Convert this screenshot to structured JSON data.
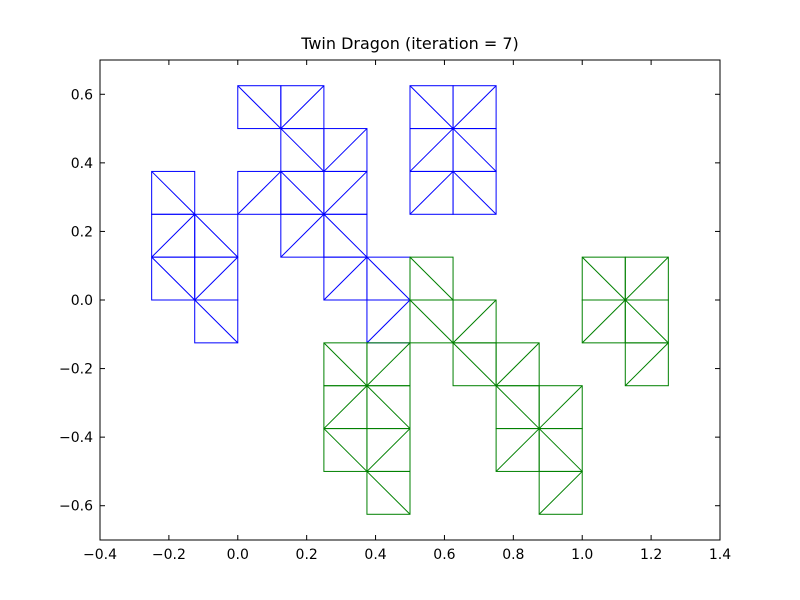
{
  "chart_data": {
    "type": "line",
    "title": "Twin Dragon   (iteration = 7)",
    "xlabel": "",
    "ylabel": "",
    "xlim": [
      -0.4,
      1.4
    ],
    "ylim": [
      -0.7,
      0.7
    ],
    "x_ticks": [
      -0.4,
      -0.2,
      0.0,
      0.2,
      0.4,
      0.6,
      0.8,
      1.0,
      1.2,
      1.4
    ],
    "x_tick_labels": [
      "−0.4",
      "−0.2",
      "0.0",
      "0.2",
      "0.4",
      "0.6",
      "0.8",
      "1.0",
      "1.2",
      "1.4"
    ],
    "y_ticks": [
      -0.6,
      -0.4,
      -0.2,
      0.0,
      0.2,
      0.4,
      0.6
    ],
    "y_tick_labels": [
      "−0.6",
      "−0.4",
      "−0.2",
      "0.0",
      "0.2",
      "0.4",
      "0.6"
    ],
    "grid": false,
    "cell_size": 0.125,
    "series": [
      {
        "color": "#0000ff",
        "cells": [
          [
            0,
            0.5,
            [
              "d"
            ]
          ],
          [
            0.125,
            0.5,
            [
              "a"
            ]
          ],
          [
            0.125,
            0.375,
            [
              "d"
            ]
          ],
          [
            0.25,
            0.375,
            [
              "a"
            ]
          ],
          [
            0.5,
            0.5,
            [
              "d"
            ]
          ],
          [
            0.625,
            0.5,
            [
              "a"
            ]
          ],
          [
            0.5,
            0.375,
            [
              "a"
            ]
          ],
          [
            0.625,
            0.375,
            [
              "d"
            ]
          ],
          [
            -0.25,
            0.25,
            [
              "d"
            ]
          ],
          [
            0,
            0.25,
            [
              "a"
            ]
          ],
          [
            0.125,
            0.25,
            [
              "d"
            ]
          ],
          [
            0.25,
            0.25,
            [
              "a"
            ]
          ],
          [
            0.5,
            0.25,
            [
              "a"
            ]
          ],
          [
            0.625,
            0.25,
            [
              "d"
            ]
          ],
          [
            -0.25,
            0.125,
            [
              "a"
            ]
          ],
          [
            -0.125,
            0.125,
            [
              "d"
            ]
          ],
          [
            0.125,
            0.125,
            [
              "a"
            ]
          ],
          [
            0.25,
            0.125,
            [
              "d"
            ]
          ],
          [
            -0.25,
            0,
            [
              "d"
            ]
          ],
          [
            -0.125,
            0,
            [
              "a"
            ]
          ],
          [
            0.25,
            0,
            [
              "a"
            ]
          ],
          [
            0.375,
            0,
            [
              "d"
            ]
          ],
          [
            -0.125,
            -0.125,
            [
              "d"
            ]
          ],
          [
            0.375,
            -0.125,
            [
              "a"
            ]
          ]
        ]
      },
      {
        "color": "#008000",
        "cells": [
          [
            0.5,
            0,
            [
              "d"
            ]
          ],
          [
            1.0,
            0,
            [
              "d"
            ]
          ],
          [
            0.5,
            -0.125,
            [
              "d"
            ]
          ],
          [
            0.625,
            -0.125,
            [
              "a"
            ]
          ],
          [
            1.125,
            0,
            [
              "a"
            ]
          ],
          [
            1.0,
            -0.125,
            [
              "a"
            ]
          ],
          [
            1.125,
            -0.125,
            [
              "d"
            ]
          ],
          [
            0.25,
            -0.25,
            [
              "d"
            ]
          ],
          [
            0.375,
            -0.25,
            [
              "a"
            ]
          ],
          [
            0.625,
            -0.25,
            [
              "d"
            ]
          ],
          [
            0.75,
            -0.25,
            [
              "a"
            ]
          ],
          [
            1.125,
            -0.25,
            [
              "a"
            ]
          ],
          [
            0.25,
            -0.375,
            [
              "a"
            ]
          ],
          [
            0.375,
            -0.375,
            [
              "d"
            ]
          ],
          [
            0.75,
            -0.375,
            [
              "d"
            ]
          ],
          [
            0.875,
            -0.375,
            [
              "a"
            ]
          ],
          [
            0.25,
            -0.5,
            [
              "d"
            ]
          ],
          [
            0.375,
            -0.5,
            [
              "a"
            ]
          ],
          [
            0.75,
            -0.5,
            [
              "a"
            ]
          ],
          [
            0.875,
            -0.5,
            [
              "d"
            ]
          ],
          [
            0.375,
            -0.625,
            [
              "d"
            ]
          ],
          [
            0.875,
            -0.625,
            [
              "a"
            ]
          ]
        ]
      }
    ]
  }
}
